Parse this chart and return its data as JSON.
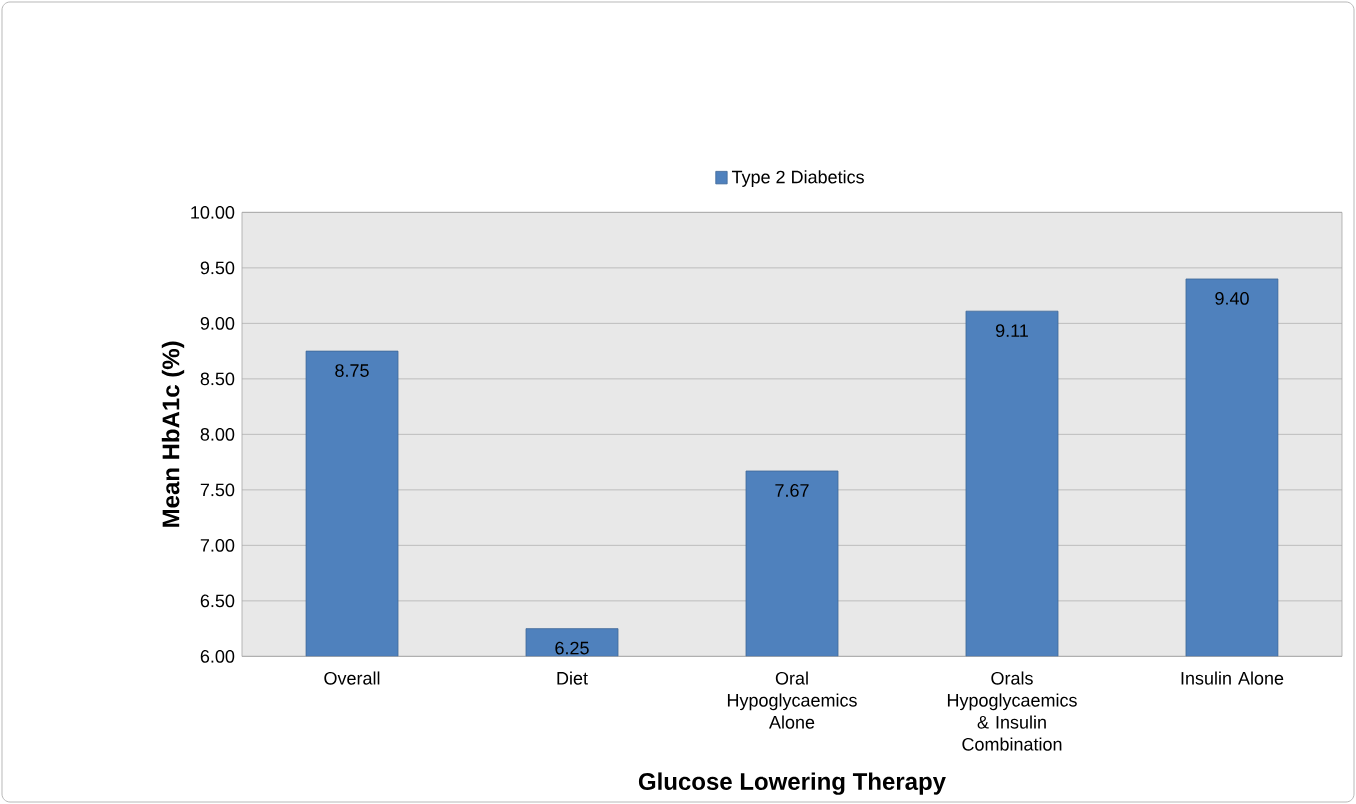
{
  "chart_data": {
    "type": "bar",
    "xlabel": "Glucose Lowering Therapy",
    "ylabel": "Mean HbA1c (%)",
    "categories": [
      "Overall",
      "Diet",
      "Oral Hypoglycaemics Alone",
      "Orals Hypoglycaemics & Insulin Combination",
      "Insulin Alone"
    ],
    "series": [
      {
        "name": "Type 2 Diabetics",
        "color": "#4f81bd",
        "values": [
          8.75,
          6.25,
          7.67,
          9.11,
          9.4
        ],
        "value_labels": [
          "8.75",
          "6.25",
          "7.67",
          "9.11",
          "9.40"
        ]
      }
    ],
    "ylim": [
      6,
      10
    ],
    "yticks": [
      {
        "value": 6,
        "label": "6.00"
      },
      {
        "value": 6.5,
        "label": "6.50"
      },
      {
        "value": 7,
        "label": "7.00"
      },
      {
        "value": 7.5,
        "label": "7.50"
      },
      {
        "value": 8,
        "label": "8.00"
      },
      {
        "value": 8.5,
        "label": "8.50"
      },
      {
        "value": 9,
        "label": "9.00"
      },
      {
        "value": 9.5,
        "label": "9.50"
      },
      {
        "value": 10,
        "label": "10.00"
      }
    ],
    "grid": "y",
    "legend": "top"
  }
}
